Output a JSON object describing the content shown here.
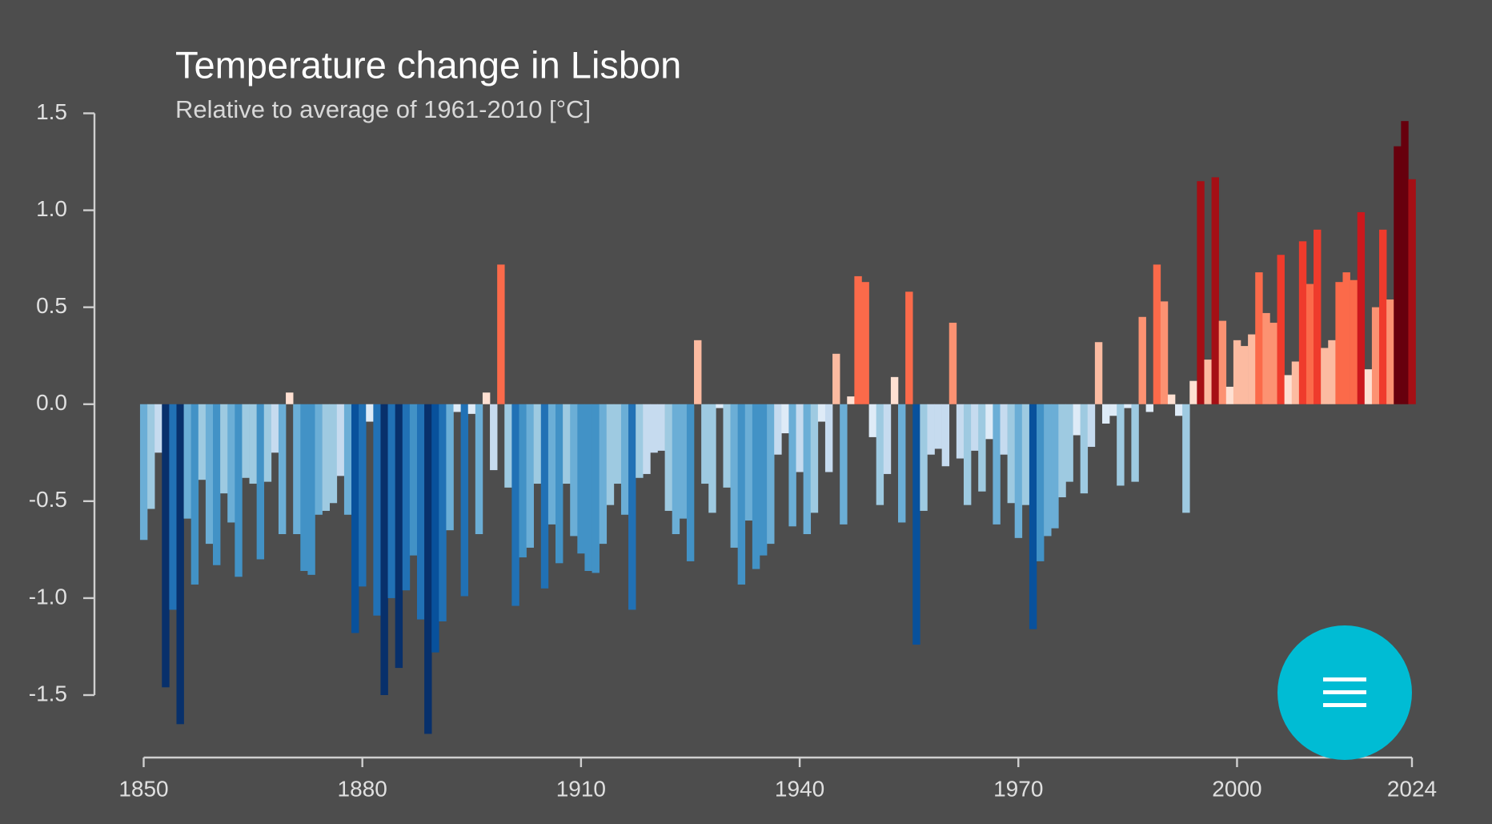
{
  "chart_data": {
    "type": "bar",
    "title": "Temperature change in Lisbon",
    "subtitle": "Relative to average of 1961-2010  [°C]",
    "x": [
      1850,
      1851,
      1852,
      1853,
      1854,
      1855,
      1856,
      1857,
      1858,
      1859,
      1860,
      1861,
      1862,
      1863,
      1864,
      1865,
      1866,
      1867,
      1868,
      1869,
      1870,
      1871,
      1872,
      1873,
      1874,
      1875,
      1876,
      1877,
      1878,
      1879,
      1880,
      1881,
      1882,
      1883,
      1884,
      1885,
      1886,
      1887,
      1888,
      1889,
      1890,
      1891,
      1892,
      1893,
      1894,
      1895,
      1896,
      1897,
      1898,
      1899,
      1900,
      1901,
      1902,
      1903,
      1904,
      1905,
      1906,
      1907,
      1908,
      1909,
      1910,
      1911,
      1912,
      1913,
      1914,
      1915,
      1916,
      1917,
      1918,
      1919,
      1920,
      1921,
      1922,
      1923,
      1924,
      1925,
      1926,
      1927,
      1928,
      1929,
      1930,
      1931,
      1932,
      1933,
      1934,
      1935,
      1936,
      1937,
      1938,
      1939,
      1940,
      1941,
      1942,
      1943,
      1944,
      1945,
      1946,
      1947,
      1948,
      1949,
      1950,
      1951,
      1952,
      1953,
      1954,
      1955,
      1956,
      1957,
      1958,
      1959,
      1960,
      1961,
      1962,
      1963,
      1964,
      1965,
      1966,
      1967,
      1968,
      1969,
      1970,
      1971,
      1972,
      1973,
      1974,
      1975,
      1976,
      1977,
      1978,
      1979,
      1980,
      1981,
      1982,
      1983,
      1984,
      1985,
      1986,
      1987,
      1988,
      1989,
      1990,
      1991,
      1992,
      1993,
      1994,
      1995,
      1996,
      1997,
      1998,
      1999,
      2000,
      2001,
      2002,
      2003,
      2004,
      2005,
      2006,
      2007,
      2008,
      2009,
      2010,
      2011,
      2012,
      2013,
      2014,
      2015,
      2016,
      2017,
      2018,
      2019,
      2020,
      2021,
      2022,
      2023,
      2024
    ],
    "values": [
      -0.7,
      -0.54,
      -0.25,
      -1.46,
      -1.06,
      -1.65,
      -0.59,
      -0.93,
      -0.39,
      -0.72,
      -0.83,
      -0.46,
      -0.61,
      -0.89,
      -0.38,
      -0.41,
      -0.8,
      -0.4,
      -0.25,
      -0.67,
      0.06,
      -0.67,
      -0.86,
      -0.88,
      -0.57,
      -0.55,
      -0.51,
      -0.37,
      -0.57,
      -1.18,
      -0.94,
      -0.09,
      -1.09,
      -1.5,
      -1.0,
      -1.36,
      -0.96,
      -0.78,
      -1.11,
      -1.7,
      -1.28,
      -1.12,
      -0.65,
      -0.04,
      -0.99,
      -0.05,
      -0.67,
      0.06,
      -0.34,
      0.72,
      -0.43,
      -1.04,
      -0.79,
      -0.74,
      -0.41,
      -0.95,
      -0.62,
      -0.82,
      -0.41,
      -0.68,
      -0.77,
      -0.86,
      -0.87,
      -0.72,
      -0.52,
      -0.41,
      -0.57,
      -1.06,
      -0.38,
      -0.36,
      -0.25,
      -0.24,
      -0.55,
      -0.67,
      -0.59,
      -0.81,
      0.33,
      -0.41,
      -0.56,
      -0.02,
      -0.43,
      -0.74,
      -0.93,
      -0.6,
      -0.85,
      -0.78,
      -0.72,
      -0.26,
      -0.15,
      -0.63,
      -0.35,
      -0.67,
      -0.56,
      -0.09,
      -0.35,
      0.26,
      -0.62,
      0.04,
      0.66,
      0.63,
      -0.17,
      -0.52,
      -0.36,
      0.14,
      -0.61,
      0.58,
      -1.24,
      -0.55,
      -0.26,
      -0.23,
      -0.32,
      0.42,
      -0.28,
      -0.52,
      -0.24,
      -0.45,
      -0.18,
      -0.62,
      -0.26,
      -0.51,
      -0.69,
      -0.52,
      -1.16,
      -0.81,
      -0.68,
      -0.64,
      -0.48,
      -0.4,
      -0.16,
      -0.46,
      -0.22,
      0.32,
      -0.1,
      -0.06,
      -0.42,
      -0.02,
      -0.4,
      0.45,
      -0.04,
      0.72,
      0.53,
      0.05,
      -0.06,
      -0.56,
      0.12,
      1.15,
      0.23,
      1.17,
      0.43,
      0.09,
      0.33,
      0.3,
      0.36,
      0.68,
      0.47,
      0.42,
      0.77,
      0.15,
      0.22,
      0.84,
      0.62,
      0.9,
      0.29,
      0.33,
      0.63,
      0.68,
      0.64,
      0.99,
      0.18,
      0.5,
      0.9,
      0.54,
      1.33,
      1.46,
      1.16
    ],
    "colormap": [
      "#08306b",
      "#08519c",
      "#2171b5",
      "#4292c6",
      "#6baed6",
      "#9ecae1",
      "#c6dbef",
      "#deebf7",
      "#fee0d2",
      "#fcbba1",
      "#fc9272",
      "#fb6a4a",
      "#ef3b2c",
      "#cb181d",
      "#a50f15",
      "#67000d"
    ],
    "xlim": [
      1850,
      2024
    ],
    "xticks": [
      1850,
      1880,
      1910,
      1940,
      1970,
      2000,
      2024
    ],
    "ylim": [
      -1.5,
      1.5
    ],
    "yticks": [
      {
        "value": 1.5,
        "label": "1.5"
      },
      {
        "value": 1,
        "label": "1.0"
      },
      {
        "value": 0.5,
        "label": "0.5"
      },
      {
        "value": 0,
        "label": "0.0"
      },
      {
        "value": -0.5,
        "label": "-0.5"
      },
      {
        "value": -1,
        "label": "-1.0"
      },
      {
        "value": -1.5,
        "label": "-1.5"
      }
    ]
  }
}
